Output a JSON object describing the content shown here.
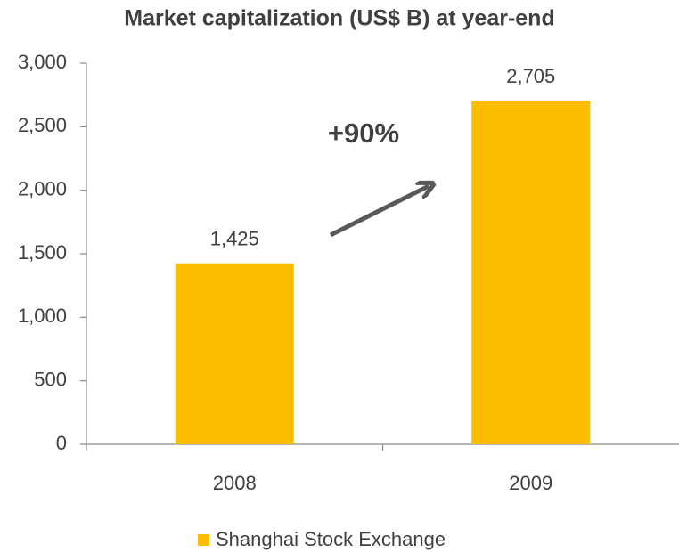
{
  "chart_data": {
    "type": "bar",
    "title": "Market capitalization (US$ B) at year-end",
    "categories": [
      "2008",
      "2009"
    ],
    "series": [
      {
        "name": "Shanghai Stock Exchange",
        "color": "#fcbc00",
        "values": [
          1425,
          2705
        ],
        "value_labels": [
          "1,425",
          "2,705"
        ]
      }
    ],
    "ylim": [
      0,
      3000
    ],
    "yticks": [
      0,
      500,
      {
        "value": 1000,
        "label": "1,000"
      },
      {
        "value": 1500,
        "label": "1,500"
      },
      {
        "value": 2000,
        "label": "2,000"
      },
      {
        "value": 2500,
        "label": "2,500"
      },
      {
        "value": 3000,
        "label": "3,000"
      }
    ],
    "grid": false,
    "annotations": [
      "+90%"
    ],
    "legend": "bottom"
  }
}
